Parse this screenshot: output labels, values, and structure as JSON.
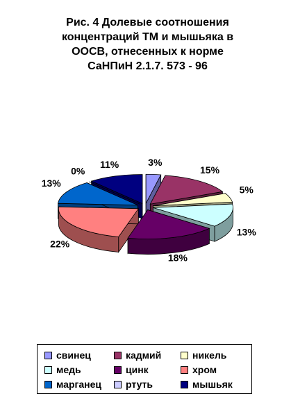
{
  "title_lines": [
    "Рис. 4 Долевые соотношения",
    "концентраций ТМ и мышьяка в",
    "ООСВ, отнесенных к норме",
    "СаНПиН 2.1.7. 573 - 96"
  ],
  "chart_data": {
    "type": "pie",
    "title": "Рис. 4 Долевые соотношения концентраций ТМ и мышьяка в ООСВ, отнесенных к норме СаНПиН 2.1.7. 573 - 96",
    "exploded": true,
    "three_d": true,
    "legend_position": "bottom",
    "categories": [
      "свинец",
      "кадмий",
      "никель",
      "медь",
      "цинк",
      "хром",
      "марганец",
      "ртуть",
      "мышьяк"
    ],
    "values": [
      3,
      15,
      5,
      13,
      18,
      22,
      13,
      0,
      11
    ],
    "labels": [
      "3%",
      "15%",
      "5%",
      "13%",
      "18%",
      "22%",
      "13%",
      "0%",
      "11%"
    ],
    "colors": [
      "#9999FF",
      "#993366",
      "#FFFFCC",
      "#CCFFFF",
      "#660066",
      "#FF8080",
      "#0066CC",
      "#CCCCFF",
      "#000080"
    ]
  }
}
